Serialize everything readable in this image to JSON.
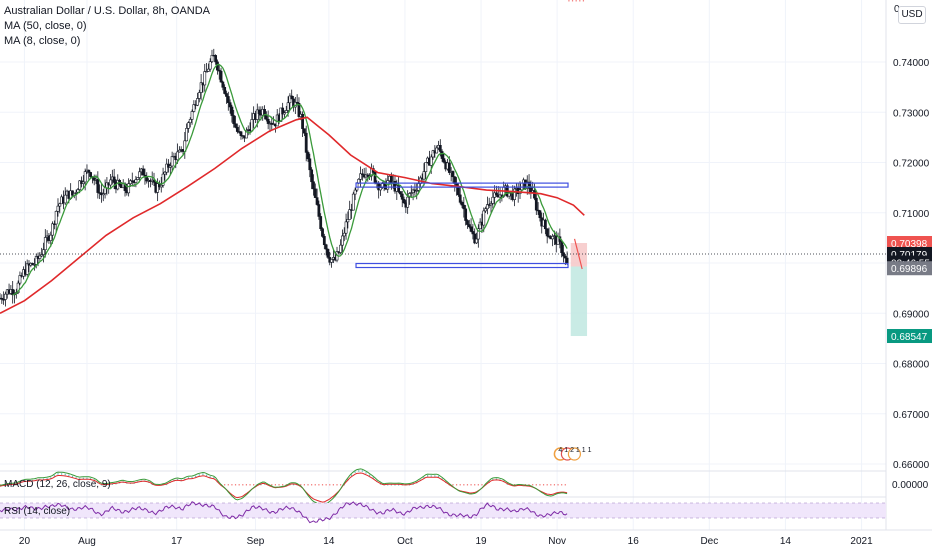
{
  "legend": {
    "title": "Australian Dollar / U.S. Dollar, 8h, OANDA",
    "ma50": "MA (50, close, 0)",
    "ma8": "MA (8, close, 0)"
  },
  "top_axis_value": "0.",
  "currency_button": "USD",
  "macd_label": "MACD (12, 26, close, 9)",
  "rsi_label": "RSI (14, close)",
  "macd_axis_value": "0.00000",
  "price_tags": [
    {
      "text": "0.70398",
      "color": "#ef5350"
    },
    {
      "text": "0.70179",
      "color": "#131722"
    },
    {
      "text": "02:46:55",
      "color": "#131722"
    },
    {
      "text": "0.69896",
      "color": "#787b86"
    },
    {
      "text": "0.68547",
      "color": "#089981"
    }
  ],
  "event_badge": "4 1 2 1 1 1",
  "colors": {
    "up": "#131722",
    "down": "#131722",
    "ma50": "#e0292b",
    "ma8": "#3a9a3a",
    "level": "#3f4fe0",
    "stop_zone": "#f6c7c7",
    "target_zone": "#bfe8e0",
    "rsi_band": "#f0e6fb",
    "rsi_line": "#7e2ba6"
  },
  "chart_data": {
    "type": "candlestick",
    "title": "Australian Dollar / U.S. Dollar, 8h, OANDA",
    "y_range": [
      0.657,
      0.7435
    ],
    "y_ticks": [
      "0.74000",
      "0.73000",
      "0.72000",
      "0.71000",
      "0.70000",
      "0.69000",
      "0.68000",
      "0.67000",
      "0.66000"
    ],
    "y_tick_values": [
      0.74,
      0.73,
      0.72,
      0.71,
      0.7,
      0.69,
      0.68,
      0.67,
      0.66
    ],
    "x_ticks": [
      "20",
      "Aug",
      "17",
      "Sep",
      "14",
      "Oct",
      "19",
      "Nov",
      "16",
      "Dec",
      "14",
      "2021"
    ],
    "x_tick_days": [
      0,
      11.5,
      28,
      42.5,
      56,
      70,
      84,
      98,
      112,
      126,
      140,
      154
    ],
    "x_range_days": [
      -4.5,
      158.5
    ],
    "close_path_days": [
      -4.5,
      -3,
      -1.5,
      0,
      1,
      2,
      3,
      4,
      5,
      6,
      7,
      8,
      9,
      10,
      11,
      12,
      13,
      14,
      15,
      16,
      17,
      18,
      19,
      20,
      21,
      22,
      23,
      24,
      25,
      26,
      27,
      28,
      29,
      30,
      31,
      32,
      33,
      34,
      35,
      36,
      37,
      38,
      39,
      40,
      41,
      42,
      43,
      44,
      45,
      46,
      47,
      48,
      49,
      50,
      51,
      52,
      53,
      54,
      55,
      56,
      57,
      58,
      59,
      60,
      61,
      62,
      63,
      64,
      65,
      66,
      67,
      68,
      69,
      70,
      71,
      72,
      73,
      74,
      75,
      76,
      77,
      78,
      79,
      80,
      81,
      82,
      83,
      84,
      85,
      86,
      87,
      88,
      89,
      90,
      91,
      92,
      93,
      94,
      95,
      96,
      97,
      98,
      99,
      100,
      101,
      102,
      103
    ],
    "close_path_values": [
      0.693,
      0.6945,
      0.6948,
      0.6985,
      0.6995,
      0.7,
      0.7018,
      0.7045,
      0.7065,
      0.7112,
      0.7125,
      0.7138,
      0.7135,
      0.7158,
      0.7175,
      0.7185,
      0.7162,
      0.7135,
      0.7145,
      0.7168,
      0.7155,
      0.7148,
      0.7145,
      0.7168,
      0.7175,
      0.7182,
      0.7165,
      0.7148,
      0.7158,
      0.7183,
      0.7205,
      0.7215,
      0.7218,
      0.7275,
      0.7305,
      0.7345,
      0.7365,
      0.7395,
      0.7412,
      0.7375,
      0.734,
      0.73,
      0.7265,
      0.7245,
      0.7262,
      0.7285,
      0.7298,
      0.7305,
      0.7285,
      0.7278,
      0.7295,
      0.731,
      0.7325,
      0.7312,
      0.7285,
      0.7212,
      0.715,
      0.7102,
      0.705,
      0.7012,
      0.7002,
      0.7025,
      0.707,
      0.7108,
      0.7145,
      0.7175,
      0.7185,
      0.7178,
      0.7158,
      0.7148,
      0.7165,
      0.7155,
      0.7135,
      0.7115,
      0.7138,
      0.715,
      0.717,
      0.7195,
      0.7215,
      0.7232,
      0.721,
      0.7185,
      0.7158,
      0.7135,
      0.7102,
      0.7062,
      0.7048,
      0.7078,
      0.7115,
      0.7132,
      0.7128,
      0.7145,
      0.7142,
      0.7135,
      0.7145,
      0.7158,
      0.7152,
      0.7118,
      0.7088,
      0.7065,
      0.705,
      0.7045,
      0.7025,
      0.6989
    ],
    "ma50_days": [
      -4.5,
      0,
      5,
      10,
      15,
      20,
      25,
      30,
      35,
      40,
      45,
      50,
      52,
      56,
      60,
      65,
      70,
      75,
      80,
      85,
      90,
      95,
      98,
      101,
      103
    ],
    "ma50_values": [
      0.69,
      0.6925,
      0.6965,
      0.701,
      0.7055,
      0.709,
      0.7118,
      0.7152,
      0.7188,
      0.7228,
      0.7262,
      0.7285,
      0.729,
      0.7255,
      0.7215,
      0.718,
      0.717,
      0.7158,
      0.7152,
      0.7145,
      0.7142,
      0.7138,
      0.713,
      0.7115,
      0.7095
    ],
    "levels": [
      {
        "name": "resistance",
        "value": 0.7155,
        "from_day": 61,
        "to_day": 100
      },
      {
        "name": "support",
        "value": 0.6995,
        "from_day": 61,
        "to_day": 100
      }
    ],
    "position": {
      "entry": 0.6993,
      "stop": 0.70398,
      "target": 0.68547,
      "from_day": 100.5,
      "to_day": 103.5
    },
    "last_price": 0.70179,
    "rsi_range": [
      30,
      70
    ]
  }
}
